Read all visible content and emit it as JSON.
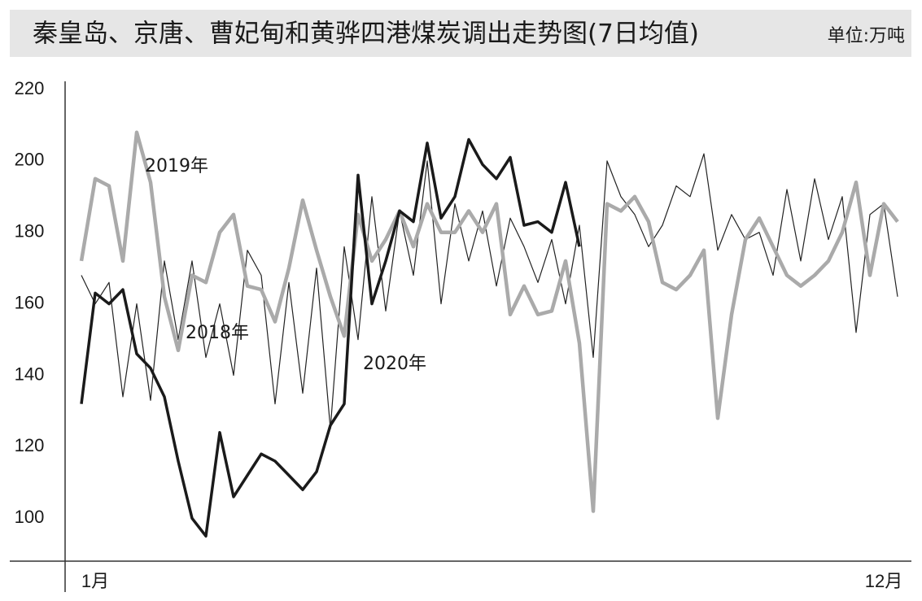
{
  "chart_data": {
    "type": "line",
    "title": "秦皇岛、京唐、曹妃甸和黄骅四港煤炭调出走势图(7日均值)",
    "subtitle": "单位:万吨",
    "categories": [
      null,
      "1月",
      null,
      null,
      null,
      null,
      null,
      null,
      null,
      null,
      null,
      null,
      null,
      null,
      null,
      null,
      null,
      null,
      null,
      null,
      null,
      null,
      null,
      null,
      null,
      null,
      null,
      null,
      null,
      null,
      null,
      null,
      null,
      null,
      null,
      null,
      null,
      null,
      null,
      null,
      null,
      null,
      null,
      null,
      null,
      null,
      null,
      null,
      null,
      null,
      null,
      null,
      null,
      null,
      null,
      null,
      null,
      null,
      "12月",
      null
    ],
    "series": [
      {
        "name": "2018年",
        "color": "#222222",
        "values": [
          168,
          160,
          166,
          134,
          160,
          133,
          172,
          150,
          172,
          145,
          160,
          140,
          175,
          168,
          132,
          166,
          135,
          170,
          125,
          176,
          150,
          190,
          158,
          186,
          168,
          200,
          160,
          188,
          172,
          186,
          165,
          184,
          176,
          166,
          178,
          160,
          182,
          145,
          200,
          190,
          185,
          176,
          182,
          193,
          190,
          202,
          175,
          185,
          178,
          180,
          168,
          192,
          172,
          195,
          178,
          190,
          152,
          185,
          188,
          162
        ]
      },
      {
        "name": "2019年",
        "color": "#aaaaaa",
        "values": [
          172,
          195,
          193,
          172,
          208,
          194,
          162,
          147,
          168,
          166,
          180,
          185,
          165,
          164,
          155,
          170,
          189,
          175,
          162,
          151,
          185,
          172,
          178,
          186,
          176,
          188,
          180,
          180,
          186,
          180,
          188,
          157,
          165,
          157,
          158,
          172,
          149,
          102,
          188,
          186,
          190,
          183,
          166,
          164,
          168,
          175,
          128,
          157,
          178,
          184,
          176,
          168,
          165,
          168,
          172,
          180,
          194,
          168,
          188,
          183
        ]
      },
      {
        "name": "2020年",
        "color": "#1a1a1a",
        "values": [
          132,
          163,
          160,
          164,
          146,
          142,
          134,
          116,
          100,
          95,
          124,
          106,
          112,
          118,
          116,
          112,
          108,
          113,
          126,
          132,
          196,
          160,
          172,
          186,
          183,
          205,
          184,
          190,
          206,
          199,
          195,
          201,
          182,
          183,
          180,
          194,
          176,
          null,
          null,
          null,
          null,
          null,
          null,
          null,
          null,
          null,
          null,
          null,
          null,
          null,
          null,
          null,
          null,
          null,
          null,
          null,
          null,
          null,
          null,
          null
        ]
      }
    ],
    "ylim": [
      88,
      222
    ],
    "yticks": [
      100,
      120,
      140,
      160,
      180,
      200,
      220
    ],
    "grid": false
  }
}
